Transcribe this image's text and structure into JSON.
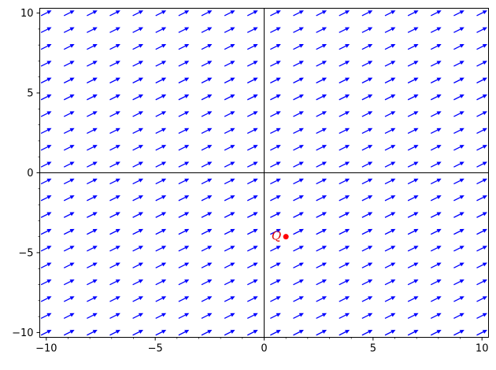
{
  "chart_data": {
    "type": "scatter",
    "subtype": "vector-field",
    "title": "",
    "xlabel": "",
    "ylabel": "",
    "xlim": [
      -10.3,
      10.3
    ],
    "ylim": [
      -10.3,
      10.3
    ],
    "x_ticks": [
      -10,
      -5,
      0,
      5,
      10
    ],
    "y_ticks": [
      -10,
      -5,
      0,
      5,
      10
    ],
    "x_tick_labels": [
      "−10",
      "−5",
      "0",
      "5",
      "10"
    ],
    "y_tick_labels": [
      "−10",
      "−5",
      "0",
      "5",
      "10"
    ],
    "axes_through_origin": true,
    "grid": false,
    "vector_field": {
      "x_start": -10,
      "x_end": 10,
      "y_start": -10,
      "y_end": 10,
      "samples_per_axis": 20,
      "direction": [
        1.0,
        0.5
      ],
      "color": "#0000ff"
    },
    "points": [
      {
        "label": "Q",
        "x": 1,
        "y": -4,
        "color": "#ff0000"
      }
    ]
  }
}
